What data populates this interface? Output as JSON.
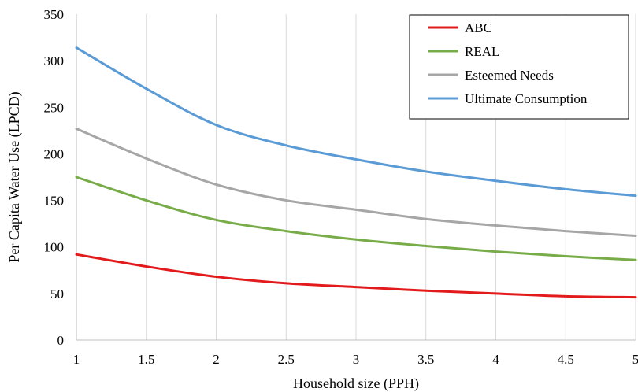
{
  "chart_data": {
    "type": "line",
    "title": "",
    "xlabel": "Household size (PPH)",
    "ylabel": "Per Capita Water Use (LPCD)",
    "xlim": [
      1,
      5
    ],
    "ylim": [
      0,
      350
    ],
    "x_ticks": [
      1,
      1.5,
      2,
      2.5,
      3,
      3.5,
      4,
      4.5,
      5
    ],
    "x_tick_labels": [
      "1",
      "1.5",
      "2",
      "2.5",
      "3",
      "3.5",
      "4",
      "4.5",
      "5"
    ],
    "y_ticks": [
      0,
      50,
      100,
      150,
      200,
      250,
      300,
      350
    ],
    "y_tick_labels": [
      "0",
      "50",
      "100",
      "150",
      "200",
      "250",
      "300",
      "350"
    ],
    "grid": "vertical",
    "legend_position": "top-right",
    "x": [
      1,
      1.5,
      2,
      2.5,
      3,
      3.5,
      4,
      4.5,
      5
    ],
    "series": [
      {
        "name": "ABC",
        "color": "#e31a1c",
        "values": [
          92,
          79,
          68,
          61,
          57,
          53,
          50,
          47,
          46
        ]
      },
      {
        "name": "REAL",
        "color": "#77ac48",
        "values": [
          175,
          150,
          129,
          117,
          108,
          101,
          95,
          90,
          86
        ]
      },
      {
        "name": "Esteemed Needs",
        "color": "#a6a6a6",
        "values": [
          227,
          195,
          167,
          150,
          140,
          130,
          123,
          117,
          112
        ]
      },
      {
        "name": "Ultimate Consumption",
        "color": "#5b9bd5",
        "values": [
          314,
          270,
          231,
          209,
          194,
          181,
          171,
          162,
          155
        ]
      }
    ]
  }
}
